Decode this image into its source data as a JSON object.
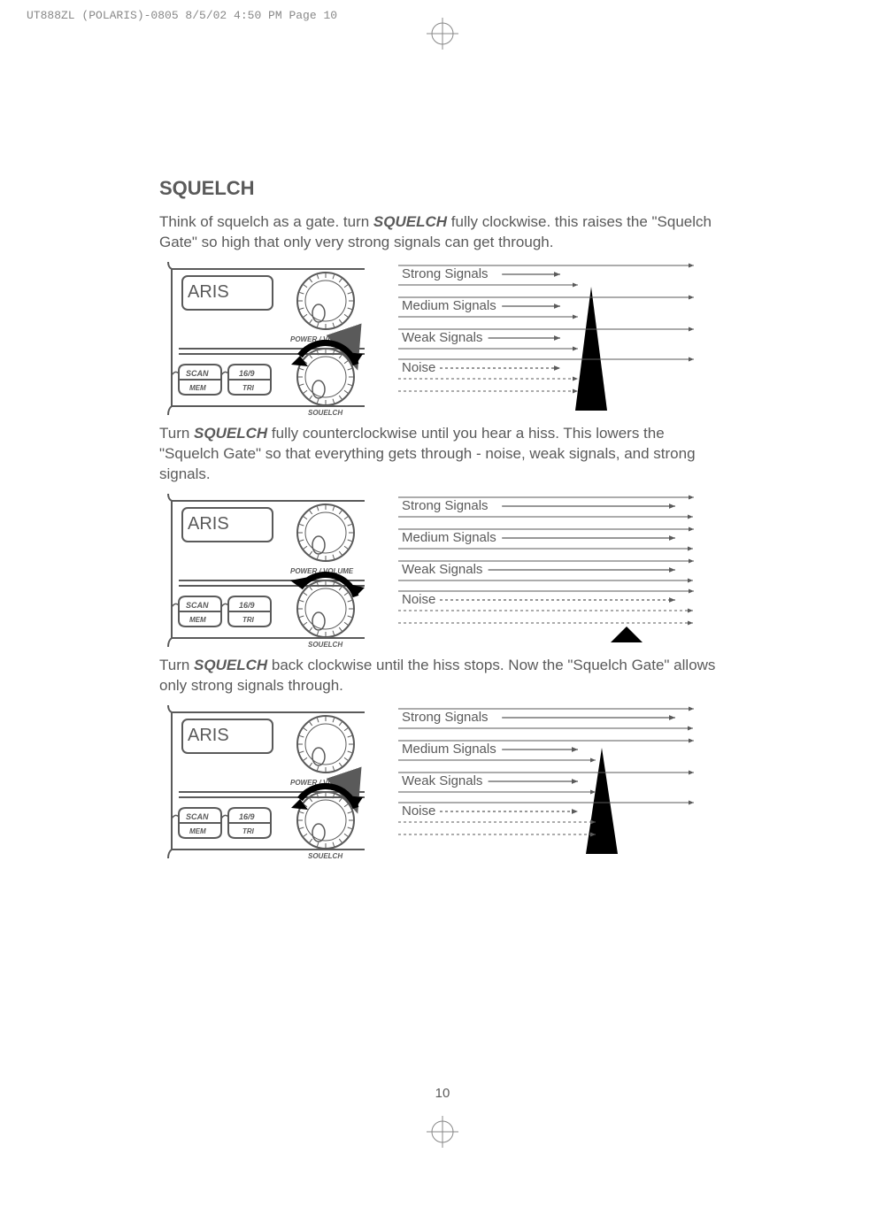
{
  "header": {
    "file_info": "UT888ZL (POLARIS)-0805  8/5/02  4:50 PM  Page 10"
  },
  "page_number": "10",
  "section": {
    "title": "SQUELCH",
    "para1_pre": "Think of squelch as a gate. turn ",
    "para1_em": "SQUELCH",
    "para1_post": " fully clockwise. this raises the \"Squelch Gate\" so high that only very strong signals can get through.",
    "para2_pre": "Turn ",
    "para2_em": "SQUELCH",
    "para2_post": " fully counterclockwise until you hear a hiss. This lowers the \"Squelch Gate\" so that everything gets through - noise, weak signals, and strong signals.",
    "para3_pre": "Turn ",
    "para3_em": "SQUELCH",
    "para3_post": " back clockwise until the hiss stops. Now the \"Squelch Gate\" allows only strong signals through."
  },
  "radio": {
    "brand_suffix": "ARIS",
    "power_label": "POWER / VOLUME",
    "squelch_label": "SQUELCH",
    "btn_scan": "SCAN",
    "btn_mem": "MEM",
    "btn_169": "16/9",
    "btn_tri": "TRI"
  },
  "gate": {
    "strong": "Strong Signals",
    "medium": "Medium Signals",
    "weak": "Weak Signals",
    "noise": "Noise"
  },
  "style": {
    "text_color": "#5a5a5a",
    "gate_fill": "#000000",
    "body_fontsize": 17,
    "title_fontsize": 22,
    "figures": {
      "fig1_gate_height": 140,
      "fig2_gate_height": 18,
      "fig3_gate_height": 120,
      "line_len_short": 185,
      "line_len_long": 315,
      "gate_width": 340,
      "gate_canvas_height": 175
    }
  }
}
